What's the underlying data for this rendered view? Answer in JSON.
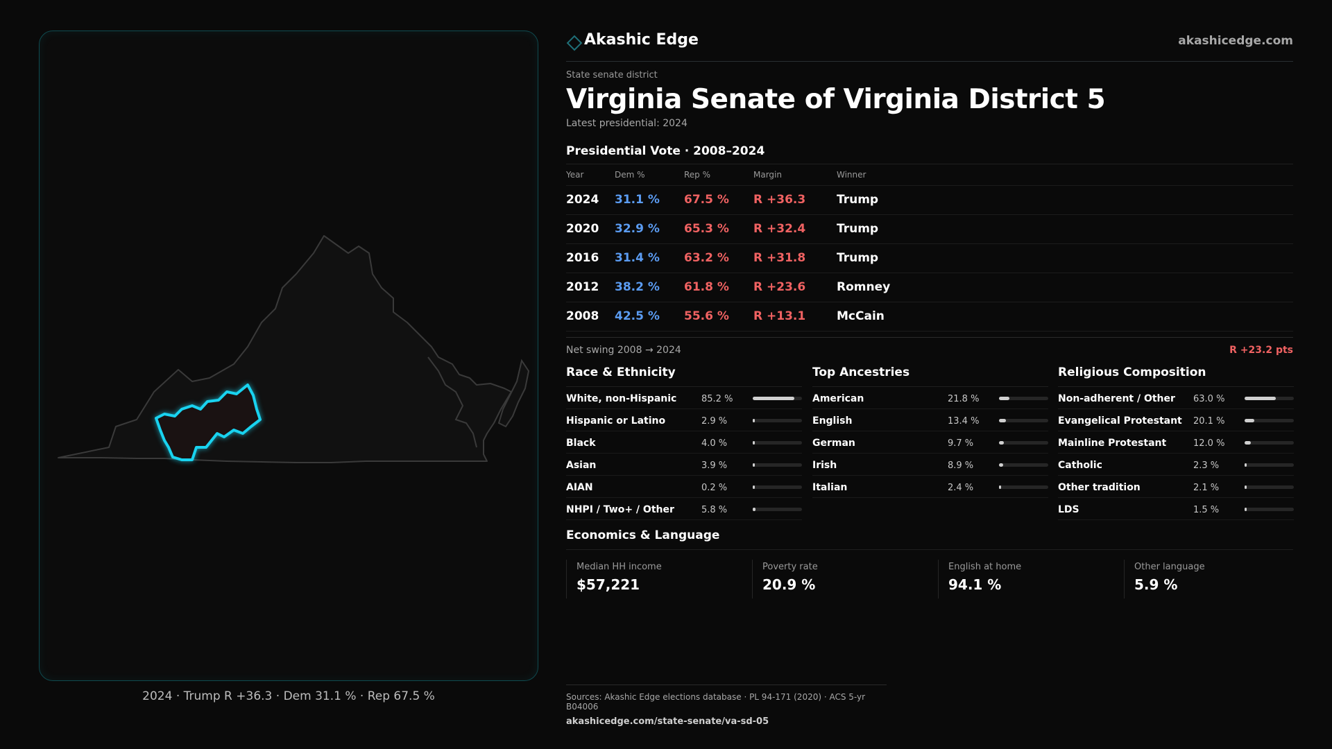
{
  "brand": {
    "name": "Akashic Edge",
    "site": "akashicedge.com",
    "logo_icon": "diamond-icon"
  },
  "district": {
    "kicker": "State senate district",
    "title": "Virginia Senate of Virginia District 5",
    "latest": "Latest presidential: 2024"
  },
  "vote": {
    "title": "Presidential Vote · 2008–2024",
    "headers": {
      "year": "Year",
      "dem": "Dem %",
      "rep": "Rep %",
      "margin": "Margin",
      "winner": "Winner"
    },
    "rows": [
      {
        "year": "2024",
        "dem": "31.1 %",
        "rep": "67.5 %",
        "margin": "R +36.3",
        "winner": "Trump"
      },
      {
        "year": "2020",
        "dem": "32.9 %",
        "rep": "65.3 %",
        "margin": "R +32.4",
        "winner": "Trump"
      },
      {
        "year": "2016",
        "dem": "31.4 %",
        "rep": "63.2 %",
        "margin": "R +31.8",
        "winner": "Trump"
      },
      {
        "year": "2012",
        "dem": "38.2 %",
        "rep": "61.8 %",
        "margin": "R +23.6",
        "winner": "Romney"
      },
      {
        "year": "2008",
        "dem": "42.5 %",
        "rep": "55.6 %",
        "margin": "R +13.1",
        "winner": "McCain"
      }
    ],
    "swing_label": "Net swing 2008 → 2024",
    "swing_value": "R +23.2 pts"
  },
  "race": {
    "title": "Race & Ethnicity",
    "rows": [
      {
        "label": "White, non-Hispanic",
        "pct": "85.2 %",
        "value": 85.2
      },
      {
        "label": "Hispanic or Latino",
        "pct": "2.9 %",
        "value": 2.9
      },
      {
        "label": "Black",
        "pct": "4.0 %",
        "value": 4.0
      },
      {
        "label": "Asian",
        "pct": "3.9 %",
        "value": 3.9
      },
      {
        "label": "AIAN",
        "pct": "0.2 %",
        "value": 0.2
      },
      {
        "label": "NHPI / Two+ / Other",
        "pct": "5.8 %",
        "value": 5.8
      }
    ]
  },
  "ancestry": {
    "title": "Top Ancestries",
    "rows": [
      {
        "label": "American",
        "pct": "21.8 %",
        "value": 21.8
      },
      {
        "label": "English",
        "pct": "13.4 %",
        "value": 13.4
      },
      {
        "label": "German",
        "pct": "9.7 %",
        "value": 9.7
      },
      {
        "label": "Irish",
        "pct": "8.9 %",
        "value": 8.9
      },
      {
        "label": "Italian",
        "pct": "2.4 %",
        "value": 2.4
      }
    ]
  },
  "religion": {
    "title": "Religious Composition",
    "rows": [
      {
        "label": "Non-adherent / Other",
        "pct": "63.0 %",
        "value": 63.0
      },
      {
        "label": "Evangelical Protestant",
        "pct": "20.1 %",
        "value": 20.1
      },
      {
        "label": "Mainline Protestant",
        "pct": "12.0 %",
        "value": 12.0
      },
      {
        "label": "Catholic",
        "pct": "2.3 %",
        "value": 2.3
      },
      {
        "label": "Other tradition",
        "pct": "2.1 %",
        "value": 2.1
      },
      {
        "label": "LDS",
        "pct": "1.5 %",
        "value": 1.5
      }
    ]
  },
  "econ": {
    "title": "Economics & Language",
    "cells": [
      {
        "label": "Median HH income",
        "value": "$57,221"
      },
      {
        "label": "Poverty rate",
        "value": "20.9 %"
      },
      {
        "label": "English at home",
        "value": "94.1 %"
      },
      {
        "label": "Other language",
        "value": "5.9 %"
      }
    ]
  },
  "map": {
    "caption": "2024 · Trump R +36.3 · Dem 31.1 % · Rep 67.5 %",
    "state_outline_color": "#3a3a3a",
    "district_color": "#19d3f0"
  },
  "sources": {
    "text": "Sources: Akashic Edge elections database · PL 94-171 (2020) · ACS 5-yr B04006",
    "url": "akashicedge.com/state-senate/va-sd-05"
  }
}
